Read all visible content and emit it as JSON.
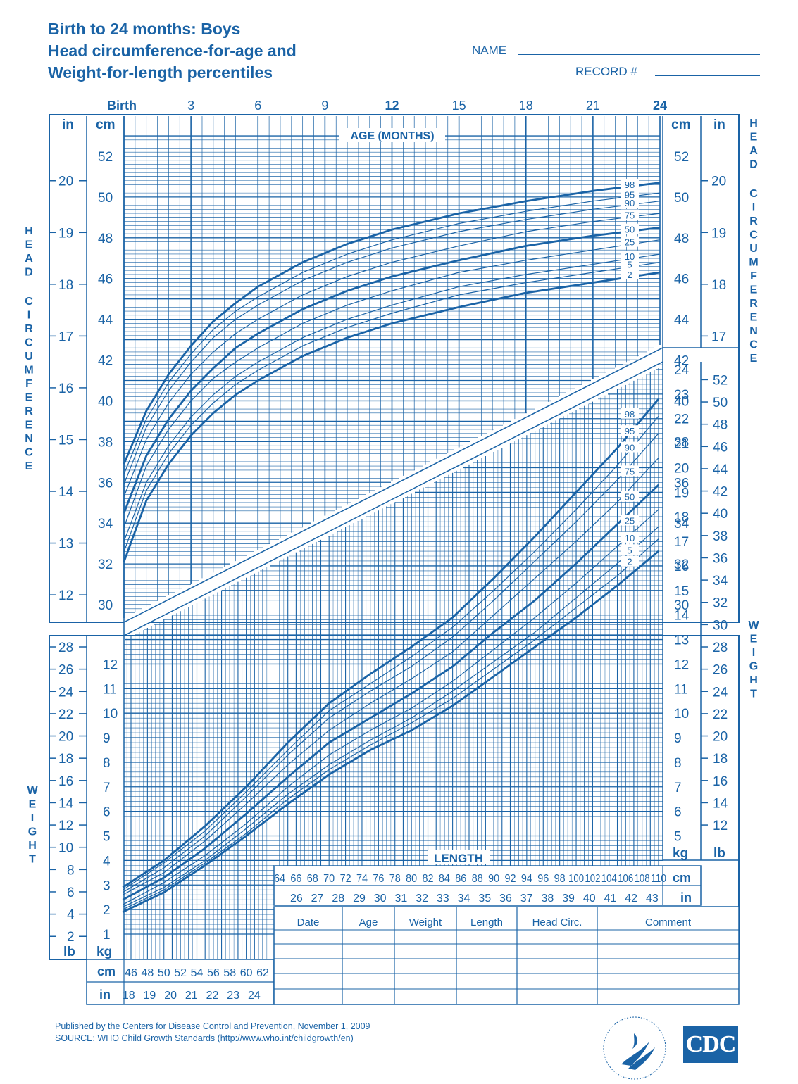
{
  "header": {
    "title_lines": [
      "Birth to 24 months: Boys",
      "Head circumference-for-age and",
      "Weight-for-length percentiles"
    ],
    "name_label": "NAME",
    "record_label": "RECORD #"
  },
  "chart_data": [
    {
      "type": "line",
      "title": "Head circumference-for-age",
      "xlabel": "AGE (MONTHS)",
      "ylabel": "HEAD CIRCUMFERENCE",
      "x_tick_labels": [
        "Birth",
        "3",
        "6",
        "9",
        "12",
        "15",
        "18",
        "21",
        "24"
      ],
      "x_tick_values": [
        0,
        3,
        6,
        9,
        12,
        15,
        18,
        21,
        24
      ],
      "xlim": [
        0,
        24
      ],
      "ylim_cm": [
        29,
        53.5
      ],
      "y_ticks_cm": [
        30,
        32,
        34,
        36,
        38,
        40,
        42,
        44,
        46,
        48,
        50,
        52
      ],
      "y_ticks_in": [
        12,
        13,
        14,
        15,
        16,
        17,
        18,
        19,
        20
      ],
      "units": {
        "cm": "cm",
        "in": "in"
      },
      "x": [
        0,
        1,
        2,
        3,
        4,
        5,
        6,
        8,
        10,
        12,
        15,
        18,
        21,
        24
      ],
      "series": [
        {
          "name": "2",
          "bold": true,
          "values": [
            32.1,
            35.1,
            36.9,
            38.3,
            39.4,
            40.3,
            41.0,
            42.2,
            43.1,
            43.8,
            44.6,
            45.3,
            45.8,
            46.3
          ]
        },
        {
          "name": "5",
          "bold": false,
          "values": [
            32.6,
            35.6,
            37.4,
            38.8,
            39.9,
            40.8,
            41.5,
            42.7,
            43.6,
            44.3,
            45.2,
            45.8,
            46.3,
            46.8
          ]
        },
        {
          "name": "10",
          "bold": false,
          "values": [
            33.1,
            36.0,
            37.8,
            39.2,
            40.3,
            41.2,
            41.9,
            43.1,
            44.0,
            44.7,
            45.6,
            46.2,
            46.7,
            47.2
          ]
        },
        {
          "name": "25",
          "bold": false,
          "values": [
            33.8,
            36.8,
            38.6,
            40.0,
            41.1,
            41.9,
            42.6,
            43.8,
            44.7,
            45.4,
            46.3,
            46.9,
            47.4,
            47.9
          ]
        },
        {
          "name": "50",
          "bold": true,
          "values": [
            34.5,
            37.3,
            39.1,
            40.5,
            41.6,
            42.6,
            43.3,
            44.5,
            45.4,
            46.1,
            46.9,
            47.6,
            48.1,
            48.5
          ]
        },
        {
          "name": "75",
          "bold": false,
          "values": [
            35.3,
            38.1,
            39.9,
            41.3,
            42.4,
            43.3,
            44.0,
            45.2,
            46.1,
            46.8,
            47.6,
            48.3,
            48.8,
            49.2
          ]
        },
        {
          "name": "90",
          "bold": false,
          "values": [
            35.9,
            38.7,
            40.5,
            41.9,
            43.1,
            44.0,
            44.7,
            45.9,
            46.8,
            47.5,
            48.3,
            48.9,
            49.4,
            49.8
          ]
        },
        {
          "name": "95",
          "bold": false,
          "values": [
            36.4,
            39.1,
            40.9,
            42.3,
            43.5,
            44.4,
            45.1,
            46.3,
            47.2,
            47.9,
            48.7,
            49.3,
            49.8,
            50.2
          ]
        },
        {
          "name": "98",
          "bold": true,
          "values": [
            36.9,
            39.5,
            41.3,
            42.7,
            43.9,
            44.8,
            45.6,
            46.8,
            47.7,
            48.4,
            49.2,
            49.8,
            50.3,
            50.7
          ]
        }
      ]
    },
    {
      "type": "line",
      "title": "Weight-for-length",
      "xlabel": "LENGTH",
      "ylabel": "WEIGHT",
      "xlim_cm": [
        45,
        110
      ],
      "x_ticks_cm_lower": [
        46,
        48,
        50,
        52,
        54,
        56,
        58,
        60,
        62
      ],
      "x_ticks_in_lower": [
        18,
        19,
        20,
        21,
        22,
        23,
        24
      ],
      "x_ticks_cm_upper": [
        64,
        66,
        68,
        70,
        72,
        74,
        76,
        78,
        80,
        82,
        84,
        86,
        88,
        90,
        92,
        94,
        96,
        98,
        100,
        102,
        104,
        106,
        108,
        110
      ],
      "x_ticks_in_upper": [
        26,
        27,
        28,
        29,
        30,
        31,
        32,
        33,
        34,
        35,
        36,
        37,
        38,
        39,
        40,
        41,
        42,
        43
      ],
      "ylim_kg": [
        1.4,
        24.5
      ],
      "y_ticks_kg": [
        1,
        2,
        3,
        4,
        5,
        6,
        7,
        8,
        9,
        10,
        11,
        12,
        13,
        14,
        15,
        16,
        17,
        18,
        19,
        20,
        21,
        22,
        23,
        24
      ],
      "y_ticks_lb": [
        2,
        4,
        6,
        8,
        10,
        12,
        14,
        16,
        18,
        20,
        22,
        24,
        26,
        28,
        30,
        32,
        34,
        36,
        38,
        40,
        42,
        44,
        46,
        48,
        50,
        52
      ],
      "units": {
        "cm": "cm",
        "in": "in",
        "kg": "kg",
        "lb": "lb"
      },
      "x": [
        45,
        50,
        55,
        60,
        65,
        70,
        75,
        80,
        85,
        90,
        95,
        100,
        105,
        110
      ],
      "series": [
        {
          "name": "2",
          "bold": true,
          "values": [
            1.9,
            2.7,
            3.8,
            5.0,
            6.3,
            7.5,
            8.5,
            9.3,
            10.3,
            11.5,
            12.7,
            13.9,
            15.2,
            16.6
          ]
        },
        {
          "name": "5",
          "bold": false,
          "values": [
            2.0,
            2.8,
            3.9,
            5.1,
            6.5,
            7.7,
            8.7,
            9.6,
            10.6,
            11.8,
            13.0,
            14.3,
            15.6,
            17.1
          ]
        },
        {
          "name": "10",
          "bold": false,
          "values": [
            2.1,
            2.9,
            4.0,
            5.3,
            6.7,
            7.9,
            8.9,
            9.8,
            10.9,
            12.1,
            13.3,
            14.7,
            16.1,
            17.6
          ]
        },
        {
          "name": "25",
          "bold": false,
          "values": [
            2.2,
            3.1,
            4.2,
            5.5,
            7.0,
            8.3,
            9.3,
            10.2,
            11.3,
            12.6,
            13.9,
            15.3,
            16.8,
            18.3
          ]
        },
        {
          "name": "50",
          "bold": true,
          "values": [
            2.4,
            3.3,
            4.5,
            5.9,
            7.4,
            8.8,
            9.8,
            10.8,
            11.9,
            13.3,
            14.6,
            16.1,
            17.7,
            19.3
          ]
        },
        {
          "name": "75",
          "bold": false,
          "values": [
            2.6,
            3.5,
            4.8,
            6.3,
            7.9,
            9.3,
            10.4,
            11.4,
            12.5,
            14.0,
            15.5,
            17.0,
            18.6,
            20.4
          ]
        },
        {
          "name": "90",
          "bold": false,
          "values": [
            2.7,
            3.7,
            5.0,
            6.6,
            8.3,
            9.8,
            10.9,
            11.9,
            13.1,
            14.6,
            16.2,
            17.8,
            19.5,
            21.4
          ]
        },
        {
          "name": "95",
          "bold": false,
          "values": [
            2.8,
            3.9,
            5.2,
            6.8,
            8.5,
            10.1,
            11.2,
            12.3,
            13.5,
            15.0,
            16.6,
            18.3,
            20.1,
            22.1
          ]
        },
        {
          "name": "98",
          "bold": true,
          "values": [
            2.9,
            4.0,
            5.4,
            7.0,
            8.8,
            10.4,
            11.6,
            12.7,
            13.9,
            15.5,
            17.2,
            19.0,
            20.8,
            22.8
          ]
        }
      ]
    }
  ],
  "record_table": {
    "headers": [
      "Date",
      "Age",
      "Weight",
      "Length",
      "Head  Circ.",
      "Comment"
    ]
  },
  "side_labels": {
    "head": "HEAD CIRCUMFERENCE",
    "weight": "WEIGHT"
  },
  "footer": {
    "line1": "Published by the Centers for Disease Control and Prevention, November 1, 2009",
    "line2": "SOURCE:  WHO Child Growth Standards (http://www.who.int/childgrowth/en)"
  },
  "logos": {
    "cdc": "CDC"
  },
  "colors": {
    "ink": "#1a63a6",
    "paper": "#ffffff"
  }
}
